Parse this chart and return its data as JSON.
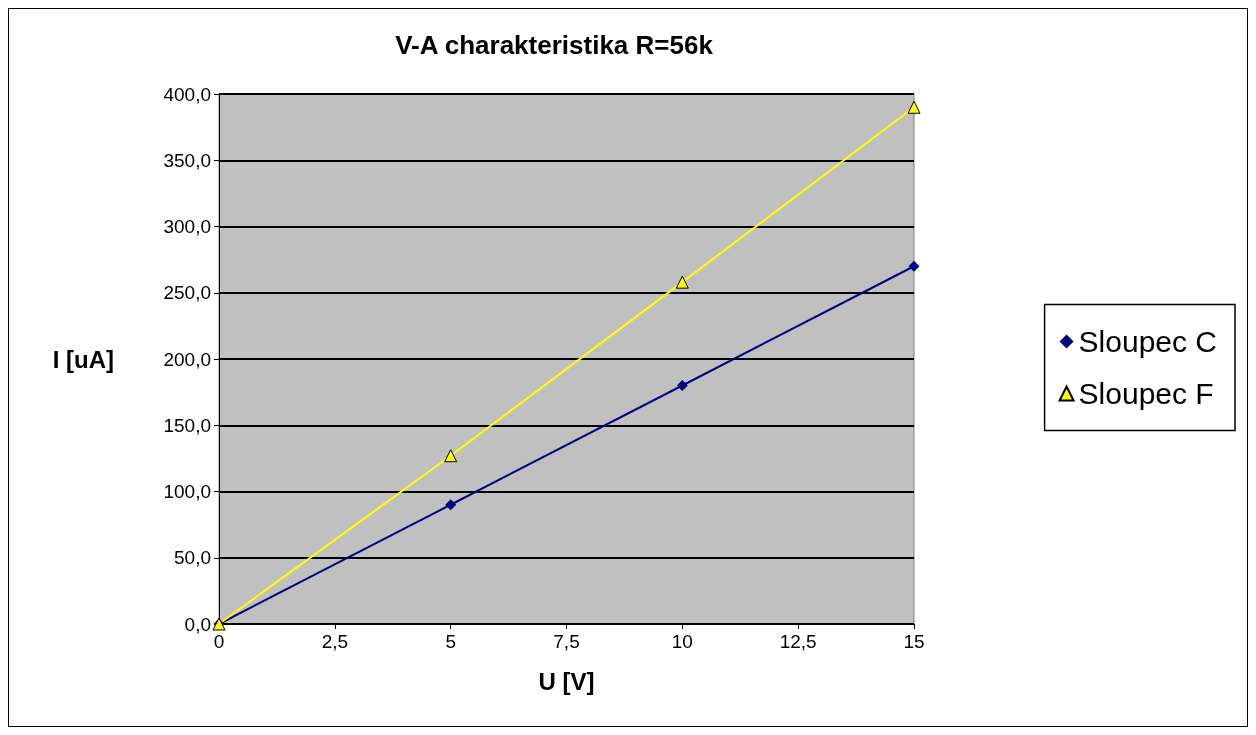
{
  "chart_data": {
    "type": "line",
    "title": "V-A charakteristika R=56k",
    "xlabel": "U [V]",
    "ylabel": "I [uA]",
    "x": [
      0,
      5,
      10,
      15
    ],
    "series": [
      {
        "name": "Sloupec C",
        "color": "#000080",
        "marker": "diamond",
        "values": [
          0,
          90,
          180,
          270
        ]
      },
      {
        "name": "Sloupec F",
        "color": "#ffff00",
        "marker": "triangle",
        "values": [
          0,
          127,
          258,
          390
        ]
      }
    ],
    "xlim": [
      0,
      15
    ],
    "xticks": [
      0,
      {
        "value": 2.5,
        "label": "2,5"
      },
      5,
      {
        "value": 7.5,
        "label": "7,5"
      },
      10,
      {
        "value": 12.5,
        "label": "12,5"
      },
      15
    ],
    "ylim": [
      0,
      400
    ],
    "yticks": [
      {
        "value": 0,
        "label": "0,0"
      },
      {
        "value": 50,
        "label": "50,0"
      },
      {
        "value": 100,
        "label": "100,0"
      },
      {
        "value": 150,
        "label": "150,0"
      },
      {
        "value": 200,
        "label": "200,0"
      },
      {
        "value": 250,
        "label": "250,0"
      },
      {
        "value": 300,
        "label": "300,0"
      },
      {
        "value": 350,
        "label": "350,0"
      },
      {
        "value": 400,
        "label": "400,0"
      }
    ],
    "grid": "y",
    "legend": "right",
    "line_style": "solid"
  }
}
